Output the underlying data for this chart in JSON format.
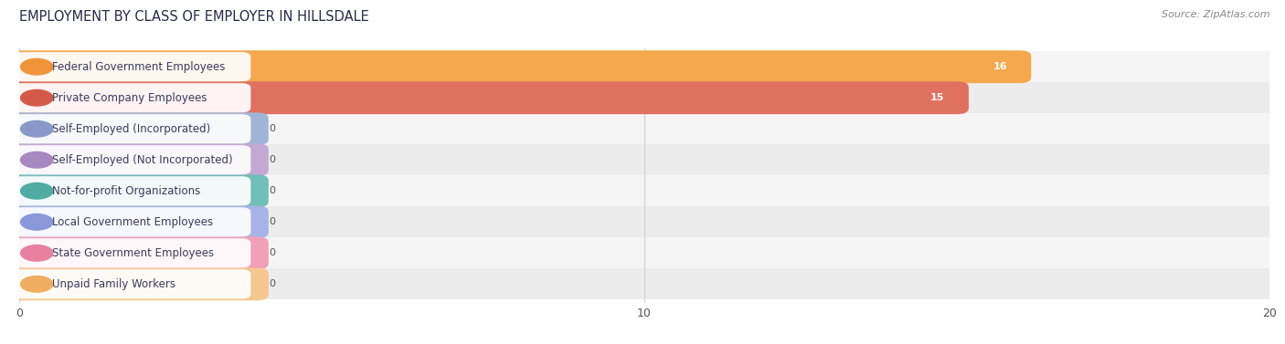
{
  "title": "EMPLOYMENT BY CLASS OF EMPLOYER IN HILLSDALE",
  "source": "Source: ZipAtlas.com",
  "categories": [
    "Federal Government Employees",
    "Private Company Employees",
    "Self-Employed (Incorporated)",
    "Self-Employed (Not Incorporated)",
    "Not-for-profit Organizations",
    "Local Government Employees",
    "State Government Employees",
    "Unpaid Family Workers"
  ],
  "values": [
    16,
    15,
    0,
    0,
    0,
    0,
    0,
    0
  ],
  "bar_colors": [
    "#f5a84e",
    "#e07060",
    "#a0b4d8",
    "#c4a8d4",
    "#70bfb8",
    "#a8b4e8",
    "#f0a0b8",
    "#f5c890"
  ],
  "dot_colors": [
    "#f0943a",
    "#d45a48",
    "#8898c8",
    "#a888c0",
    "#50aba4",
    "#8898d8",
    "#e880a0",
    "#f0ae60"
  ],
  "xlim_min": 0,
  "xlim_max": 20,
  "xticks": [
    0,
    10,
    20
  ],
  "title_fontsize": 10.5,
  "source_fontsize": 8,
  "label_fontsize": 8.5,
  "value_fontsize": 8,
  "bar_height": 0.68,
  "row_colors": [
    "#f5f5f5",
    "#ececec"
  ],
  "grid_color": "#d0d0d0",
  "title_color": "#2a2a4a",
  "label_color": "#3a3a5a",
  "source_color": "#888888",
  "zero_value_bar_width": 3.8
}
